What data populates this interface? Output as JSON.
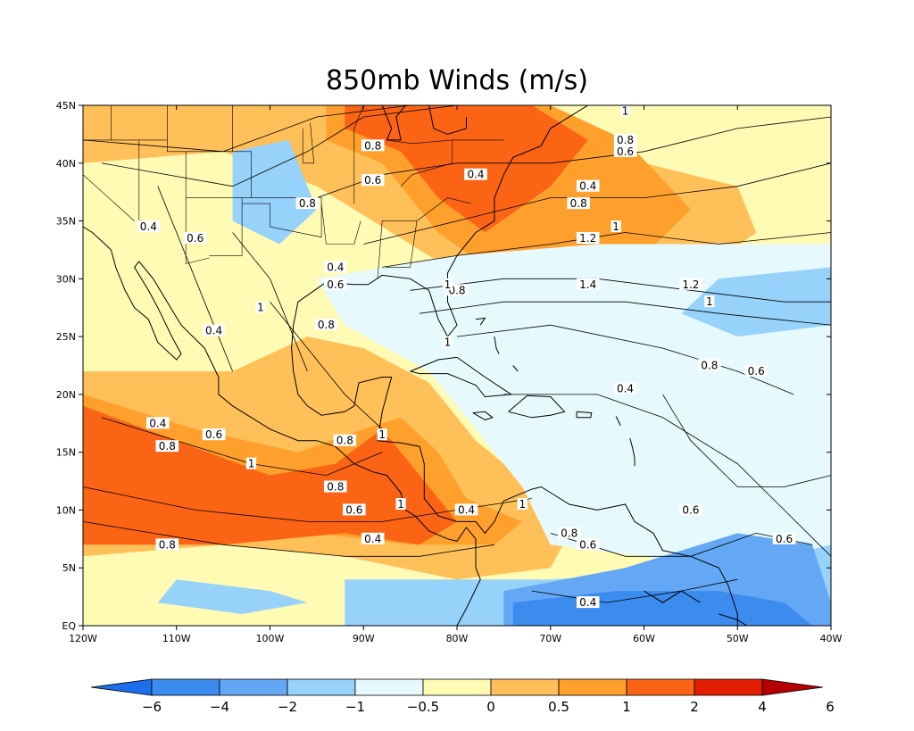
{
  "title": "850mb Winds (m/s)",
  "map": {
    "lon_range": [
      -120,
      -40
    ],
    "lat_range": [
      0,
      45
    ],
    "x_ticks": [
      {
        "lon": -120,
        "label": "120W"
      },
      {
        "lon": -110,
        "label": "110W"
      },
      {
        "lon": -100,
        "label": "100W"
      },
      {
        "lon": -90,
        "label": "90W"
      },
      {
        "lon": -80,
        "label": "80W"
      },
      {
        "lon": -70,
        "label": "70W"
      },
      {
        "lon": -60,
        "label": "60W"
      },
      {
        "lon": -50,
        "label": "50W"
      },
      {
        "lon": -40,
        "label": "40W"
      }
    ],
    "y_ticks": [
      {
        "lat": 45,
        "label": "45N"
      },
      {
        "lat": 40,
        "label": "40N"
      },
      {
        "lat": 35,
        "label": "35N"
      },
      {
        "lat": 30,
        "label": "30N"
      },
      {
        "lat": 25,
        "label": "25N"
      },
      {
        "lat": 20,
        "label": "20N"
      },
      {
        "lat": 15,
        "label": "15N"
      },
      {
        "lat": 10,
        "label": "10N"
      },
      {
        "lat": 5,
        "label": "5N"
      },
      {
        "lat": 0,
        "label": "EQ"
      }
    ],
    "colors": {
      "n6": "#1e6eeb",
      "n4": "#3c8cf0",
      "n2": "#64a8f5",
      "n1": "#96d2fa",
      "n05": "#e6fafe",
      "p0": "#fffab4",
      "p05": "#ffc05a",
      "p1": "#ff9f2c",
      "p2": "#fa6414",
      "p4": "#e11e00",
      "p6": "#b40000",
      "land": "#000000",
      "contour": "#000000"
    },
    "shading_regions": [
      {
        "level": "p05",
        "pts": [
          [
            -120,
            45
          ],
          [
            -80,
            45
          ],
          [
            -70,
            42
          ],
          [
            -50,
            38
          ],
          [
            -48,
            34
          ],
          [
            -55,
            30
          ],
          [
            -75,
            28
          ],
          [
            -85,
            33
          ],
          [
            -95,
            38
          ],
          [
            -105,
            41
          ],
          [
            -120,
            40
          ]
        ]
      },
      {
        "level": "p1",
        "pts": [
          [
            -94,
            45
          ],
          [
            -70,
            45
          ],
          [
            -62,
            42
          ],
          [
            -55,
            36
          ],
          [
            -60,
            32
          ],
          [
            -75,
            30
          ],
          [
            -82,
            34
          ],
          [
            -88,
            40
          ],
          [
            -94,
            42
          ]
        ]
      },
      {
        "level": "p2",
        "pts": [
          [
            -92,
            45
          ],
          [
            -72,
            45
          ],
          [
            -66,
            42
          ],
          [
            -70,
            38
          ],
          [
            -77,
            34
          ],
          [
            -82,
            37
          ],
          [
            -86,
            41
          ],
          [
            -92,
            43
          ]
        ]
      },
      {
        "level": "p05",
        "pts": [
          [
            -120,
            22
          ],
          [
            -104,
            22
          ],
          [
            -96,
            25
          ],
          [
            -90,
            24
          ],
          [
            -83,
            21
          ],
          [
            -78,
            16
          ],
          [
            -72,
            12
          ],
          [
            -68,
            8
          ],
          [
            -70,
            5
          ],
          [
            -80,
            4
          ],
          [
            -92,
            6
          ],
          [
            -105,
            7
          ],
          [
            -120,
            6
          ]
        ]
      },
      {
        "level": "p1",
        "pts": [
          [
            -120,
            20
          ],
          [
            -108,
            17
          ],
          [
            -97,
            15
          ],
          [
            -90,
            17
          ],
          [
            -86,
            18
          ],
          [
            -82,
            15
          ],
          [
            -79,
            11
          ],
          [
            -73,
            9
          ],
          [
            -76,
            7
          ],
          [
            -85,
            7
          ],
          [
            -95,
            8
          ],
          [
            -110,
            7
          ],
          [
            -120,
            8
          ]
        ]
      },
      {
        "level": "p2",
        "pts": [
          [
            -120,
            19
          ],
          [
            -110,
            16
          ],
          [
            -100,
            13
          ],
          [
            -93,
            14
          ],
          [
            -88,
            17
          ],
          [
            -84,
            13
          ],
          [
            -80,
            9
          ],
          [
            -84,
            7
          ],
          [
            -92,
            8
          ],
          [
            -105,
            7
          ],
          [
            -120,
            7
          ]
        ]
      },
      {
        "level": "n05",
        "pts": [
          [
            -95,
            30
          ],
          [
            -80,
            32
          ],
          [
            -65,
            33
          ],
          [
            -40,
            33
          ],
          [
            -40,
            6
          ],
          [
            -52,
            5
          ],
          [
            -60,
            6
          ],
          [
            -70,
            7
          ],
          [
            -73,
            12
          ],
          [
            -78,
            17
          ],
          [
            -83,
            22
          ],
          [
            -92,
            26
          ]
        ]
      },
      {
        "level": "n1",
        "pts": [
          [
            -40,
            31
          ],
          [
            -52,
            30
          ],
          [
            -56,
            27
          ],
          [
            -50,
            25
          ],
          [
            -40,
            26
          ]
        ]
      },
      {
        "level": "n1",
        "pts": [
          [
            -92,
            4
          ],
          [
            -70,
            4
          ],
          [
            -50,
            5
          ],
          [
            -40,
            7
          ],
          [
            -40,
            0
          ],
          [
            -92,
            0
          ]
        ]
      },
      {
        "level": "n2",
        "pts": [
          [
            -75,
            3
          ],
          [
            -62,
            5
          ],
          [
            -50,
            8
          ],
          [
            -42,
            7
          ],
          [
            -40,
            2
          ],
          [
            -40,
            0
          ],
          [
            -75,
            0
          ]
        ]
      },
      {
        "level": "n4",
        "pts": [
          [
            -74,
            2
          ],
          [
            -63,
            3
          ],
          [
            -52,
            3
          ],
          [
            -45,
            2
          ],
          [
            -42,
            0
          ],
          [
            -74,
            0
          ]
        ]
      },
      {
        "level": "n1",
        "pts": [
          [
            -110,
            4
          ],
          [
            -100,
            3
          ],
          [
            -96,
            2
          ],
          [
            -103,
            1
          ],
          [
            -112,
            2
          ]
        ]
      },
      {
        "level": "n1",
        "pts": [
          [
            -104,
            41
          ],
          [
            -98,
            42
          ],
          [
            -95,
            36
          ],
          [
            -99,
            33
          ],
          [
            -104,
            35
          ]
        ]
      }
    ],
    "contour_labels": [
      {
        "lon": -89,
        "lat": 41.5,
        "text": "0.8"
      },
      {
        "lon": -89,
        "lat": 38.5,
        "text": "0.6"
      },
      {
        "lon": -78,
        "lat": 39.0,
        "text": "0.4"
      },
      {
        "lon": -62,
        "lat": 44.5,
        "text": "1"
      },
      {
        "lon": -62,
        "lat": 42.0,
        "text": "0.8"
      },
      {
        "lon": -62,
        "lat": 41.0,
        "text": "0.6"
      },
      {
        "lon": -66,
        "lat": 38.0,
        "text": "0.4"
      },
      {
        "lon": -67,
        "lat": 36.5,
        "text": "0.8"
      },
      {
        "lon": -63,
        "lat": 34.5,
        "text": "1"
      },
      {
        "lon": -66,
        "lat": 33.5,
        "text": "1.2"
      },
      {
        "lon": -66,
        "lat": 29.5,
        "text": "1.4"
      },
      {
        "lon": -55,
        "lat": 29.5,
        "text": "1.2"
      },
      {
        "lon": -53,
        "lat": 28.0,
        "text": "1"
      },
      {
        "lon": -80,
        "lat": 29.0,
        "text": "0.8"
      },
      {
        "lon": -81,
        "lat": 29.5,
        "text": "1"
      },
      {
        "lon": -93,
        "lat": 31.0,
        "text": "0.4"
      },
      {
        "lon": -93,
        "lat": 29.5,
        "text": "0.6"
      },
      {
        "lon": -96,
        "lat": 36.5,
        "text": "0.8"
      },
      {
        "lon": -113,
        "lat": 34.5,
        "text": "0.4"
      },
      {
        "lon": -108,
        "lat": 33.5,
        "text": "0.6"
      },
      {
        "lon": -101,
        "lat": 27.5,
        "text": "1"
      },
      {
        "lon": -94,
        "lat": 26.0,
        "text": "0.8"
      },
      {
        "lon": -106,
        "lat": 25.5,
        "text": "0.4"
      },
      {
        "lon": -81,
        "lat": 24.5,
        "text": "1"
      },
      {
        "lon": -53,
        "lat": 22.5,
        "text": "0.8"
      },
      {
        "lon": -48,
        "lat": 22.0,
        "text": "0.6"
      },
      {
        "lon": -62,
        "lat": 20.5,
        "text": "0.4"
      },
      {
        "lon": -112,
        "lat": 17.5,
        "text": "0.4"
      },
      {
        "lon": -106,
        "lat": 16.5,
        "text": "0.6"
      },
      {
        "lon": -111,
        "lat": 15.5,
        "text": "0.8"
      },
      {
        "lon": -102,
        "lat": 14.0,
        "text": "1"
      },
      {
        "lon": -92,
        "lat": 16.0,
        "text": "0.8"
      },
      {
        "lon": -88,
        "lat": 16.5,
        "text": "1"
      },
      {
        "lon": -93,
        "lat": 12.0,
        "text": "0.8"
      },
      {
        "lon": -91,
        "lat": 10.0,
        "text": "0.6"
      },
      {
        "lon": -86,
        "lat": 10.5,
        "text": "1"
      },
      {
        "lon": -79,
        "lat": 10.0,
        "text": "0.4"
      },
      {
        "lon": -73,
        "lat": 10.5,
        "text": "1"
      },
      {
        "lon": -89,
        "lat": 7.5,
        "text": "0.4"
      },
      {
        "lon": -111,
        "lat": 7.0,
        "text": "0.8"
      },
      {
        "lon": -68,
        "lat": 8.0,
        "text": "0.8"
      },
      {
        "lon": -66,
        "lat": 7.0,
        "text": "0.6"
      },
      {
        "lon": -55,
        "lat": 10.0,
        "text": "0.6"
      },
      {
        "lon": -45,
        "lat": 7.5,
        "text": "0.6"
      },
      {
        "lon": -66,
        "lat": 2.0,
        "text": "0.4"
      }
    ]
  },
  "colorbar": {
    "colors": [
      "#1e6eeb",
      "#3c8cf0",
      "#64a8f5",
      "#96d2fa",
      "#e6fafe",
      "#fffab4",
      "#ffc05a",
      "#ff9f2c",
      "#fa6414",
      "#e11e00",
      "#b40000"
    ],
    "labels": [
      "−6",
      "−4",
      "−2",
      "−1",
      "−0.5",
      "0",
      "0.5",
      "1",
      "2",
      "4",
      "6"
    ]
  }
}
